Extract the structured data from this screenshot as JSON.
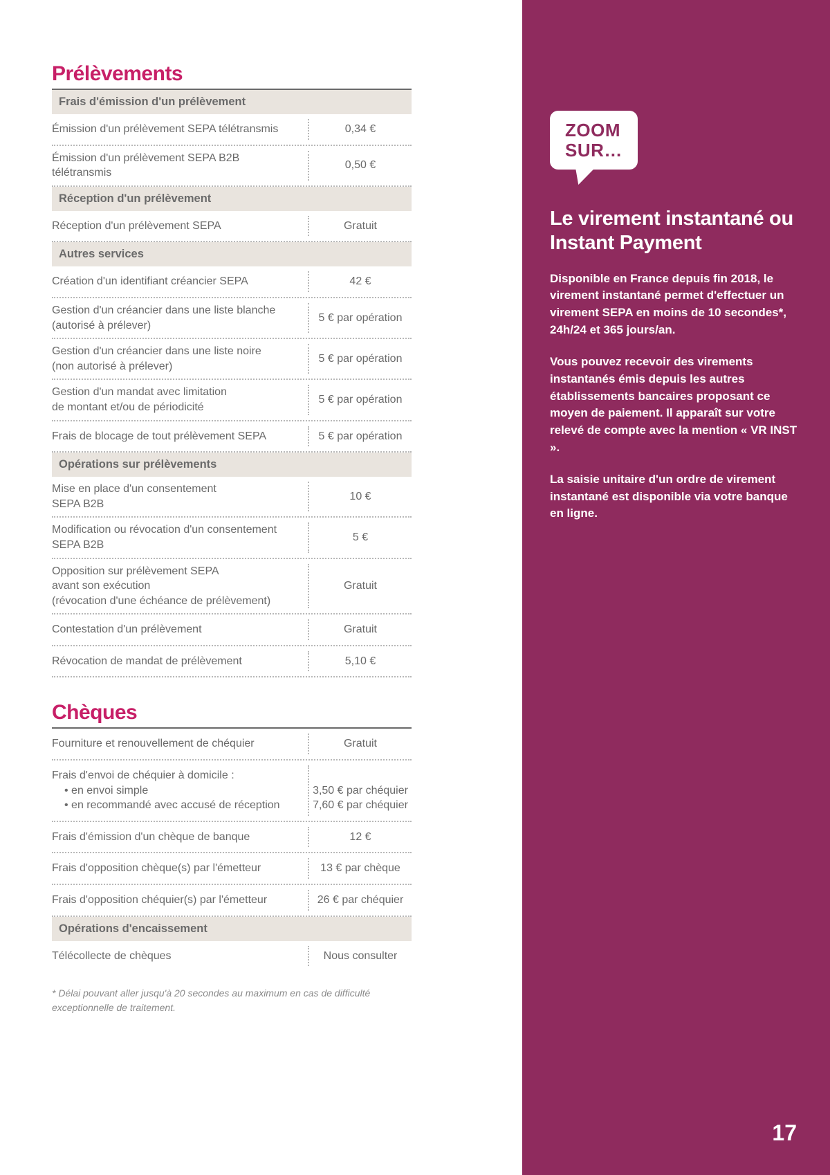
{
  "colors": {
    "accent": "#c71f67",
    "sidebar_bg": "#8f2b5e",
    "text": "#6a6a6a",
    "subhead_bg": "#e9e4de",
    "border_top": "#6a6a6a",
    "dotted": "#b8b8b8",
    "white": "#ffffff"
  },
  "page_number": "17",
  "footnote": "* Délai pouvant aller jusqu'à 20 secondes au maximum en cas de difficulté exceptionnelle de traitement.",
  "sections": {
    "prelevements": {
      "title": "Prélèvements",
      "groups": [
        {
          "heading": "Frais d'émission d'un prélèvement",
          "rows": [
            {
              "label": "Émission d'un prélèvement SEPA télétransmis",
              "value": "0,34 €"
            },
            {
              "label": "Émission d'un prélèvement SEPA B2B télétransmis",
              "value": "0,50 €"
            }
          ]
        },
        {
          "heading": "Réception d'un prélèvement",
          "rows": [
            {
              "label": "Réception d'un prélèvement SEPA",
              "value": "Gratuit"
            }
          ]
        },
        {
          "heading": "Autres services",
          "rows": [
            {
              "label": "Création d'un identifiant créancier SEPA",
              "value": "42 €"
            },
            {
              "label": "Gestion d'un créancier dans une liste blanche\n(autorisé à prélever)",
              "value": "5 € par opération"
            },
            {
              "label": "Gestion d'un créancier dans une liste noire\n(non autorisé à prélever)",
              "value": "5 € par opération"
            },
            {
              "label": "Gestion d'un mandat avec limitation\nde montant et/ou de périodicité",
              "value": "5 € par opération"
            },
            {
              "label": "Frais de blocage de tout prélèvement SEPA",
              "value": "5 € par opération"
            }
          ]
        },
        {
          "heading": "Opérations sur prélèvements",
          "rows": [
            {
              "label": "Mise en place d'un consentement\nSEPA B2B",
              "value": "10 €"
            },
            {
              "label": "Modification ou révocation d'un consentement\nSEPA B2B",
              "value": "5 €"
            },
            {
              "label": "Opposition sur prélèvement SEPA\navant son exécution\n(révocation d'une échéance de prélèvement)",
              "value": "Gratuit"
            },
            {
              "label": "Contestation d'un prélèvement",
              "value": "Gratuit"
            },
            {
              "label": "Révocation de mandat de prélèvement",
              "value": "5,10 €"
            }
          ]
        }
      ]
    },
    "cheques": {
      "title": "Chèques",
      "groups": [
        {
          "heading": null,
          "rows": [
            {
              "label": "Fourniture et renouvellement de chéquier",
              "value": "Gratuit"
            },
            {
              "label": "Frais d'envoi de chéquier à domicile :\n  • en envoi simple\n  • en recommandé avec accusé de réception",
              "value": "\n3,50 € par chéquier\n7,60 € par chéquier"
            },
            {
              "label": "Frais d'émission d'un chèque de banque",
              "value": "12 €"
            },
            {
              "label": "Frais d'opposition chèque(s) par l'émetteur",
              "value": "13 € par chèque"
            },
            {
              "label": "Frais d'opposition chéquier(s) par l'émetteur",
              "value": "26 € par chéquier"
            }
          ]
        },
        {
          "heading": "Opérations d'encaissement",
          "rows": [
            {
              "label": "Télécollecte de chèques",
              "value": "Nous consulter"
            }
          ]
        }
      ]
    }
  },
  "sidebar": {
    "bubble": "ZOOM\nSUR…",
    "title": "Le virement instantané ou Instant Payment",
    "paragraphs": [
      "Disponible en France depuis fin 2018, le virement instantané permet d'effectuer un virement SEPA en moins de 10 secondes*, 24h/24 et 365 jours/an.",
      "Vous pouvez recevoir des virements instantanés émis depuis les autres établissements bancaires proposant ce moyen de paiement. Il apparaît sur votre relevé de compte avec la mention « VR INST ».",
      "La saisie unitaire d'un ordre de virement instantané est disponible via votre banque en ligne."
    ]
  }
}
